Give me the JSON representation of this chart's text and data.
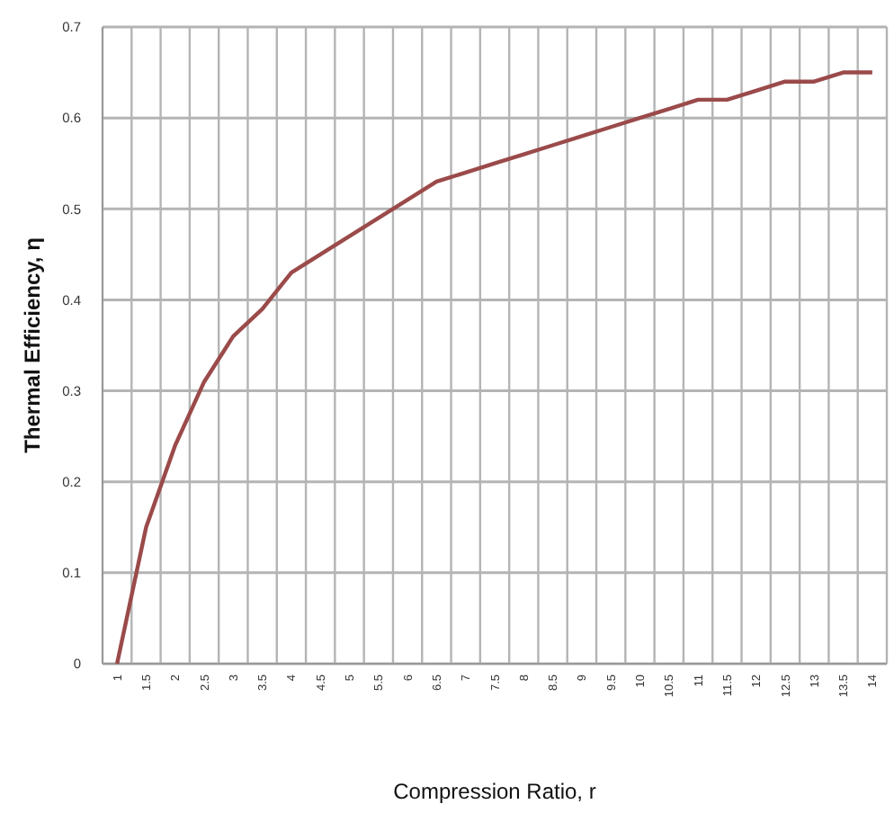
{
  "chart_data": {
    "type": "line",
    "xlabel": "Compression Ratio, r",
    "ylabel": "Thermal Efficiency, η",
    "categories": [
      "1",
      "1.5",
      "2",
      "2.5",
      "3",
      "3.5",
      "4",
      "4.5",
      "5",
      "5.5",
      "6",
      "6.5",
      "7",
      "7.5",
      "8",
      "8.5",
      "9",
      "9.5",
      "10",
      "10.5",
      "11",
      "11.5",
      "12",
      "12.5",
      "13",
      "13.5",
      "14"
    ],
    "series": [
      {
        "color": "#9b4a4a",
        "values": [
          0,
          0.15,
          0.24,
          0.31,
          0.36,
          0.39,
          0.43,
          0.45,
          0.47,
          0.49,
          0.51,
          0.53,
          0.54,
          0.55,
          0.56,
          0.57,
          0.58,
          0.59,
          0.6,
          0.61,
          0.62,
          0.62,
          0.63,
          0.64,
          0.64,
          0.65,
          0.65
        ]
      }
    ],
    "ylim": [
      0,
      0.7
    ],
    "yticks": [
      0,
      0.1,
      0.2,
      0.3,
      0.4,
      0.5,
      0.6,
      0.7
    ],
    "grid": true,
    "marker": "none",
    "line_style": "solid"
  }
}
